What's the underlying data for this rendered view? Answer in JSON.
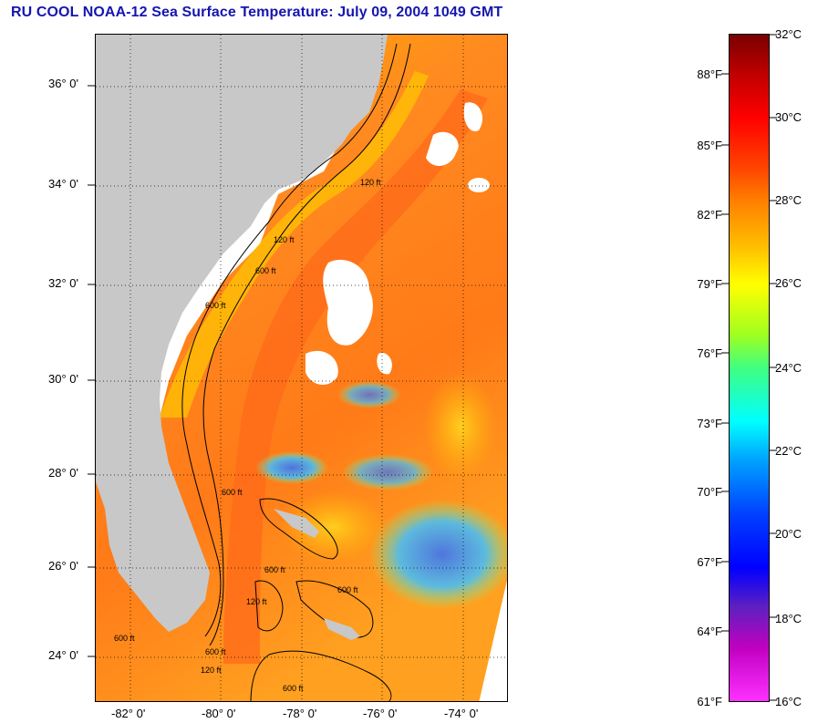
{
  "title": "RU COOL  NOAA-12  Sea Surface Temperature:  July 09, 2004 1049 GMT",
  "map": {
    "lat_labels": [
      "36° 0'",
      "34° 0'",
      "32° 0'",
      "30° 0'",
      "28° 0'",
      "26° 0'",
      "24° 0'"
    ],
    "lon_labels": [
      "-82° 0'",
      "-80° 0'",
      "-78° 0'",
      "-76° 0'",
      "-74° 0'"
    ],
    "contour_labels": [
      "120 ft",
      "600 ft",
      "120 ft",
      "600 ft",
      "600 ft",
      "600 ft",
      "120 ft",
      "600 ft",
      "120 ft",
      "600 ft",
      "600 ft",
      "600 ft"
    ],
    "colors": {
      "land": "#c8c8c8",
      "cloud": "#ffffff",
      "ocean_warm": "#ff6a1a",
      "ocean_mid": "#ffb000",
      "ocean_cool": "#40b0ff"
    }
  },
  "colorbar": {
    "celsius": [
      "32°C",
      "30°C",
      "28°C",
      "26°C",
      "24°C",
      "22°C",
      "20°C",
      "18°C",
      "16°C"
    ],
    "fahrenheit": [
      "88°F",
      "85°F",
      "82°F",
      "79°F",
      "76°F",
      "73°F",
      "70°F",
      "67°F",
      "64°F",
      "61°F"
    ],
    "range_c": [
      16,
      32
    ]
  }
}
